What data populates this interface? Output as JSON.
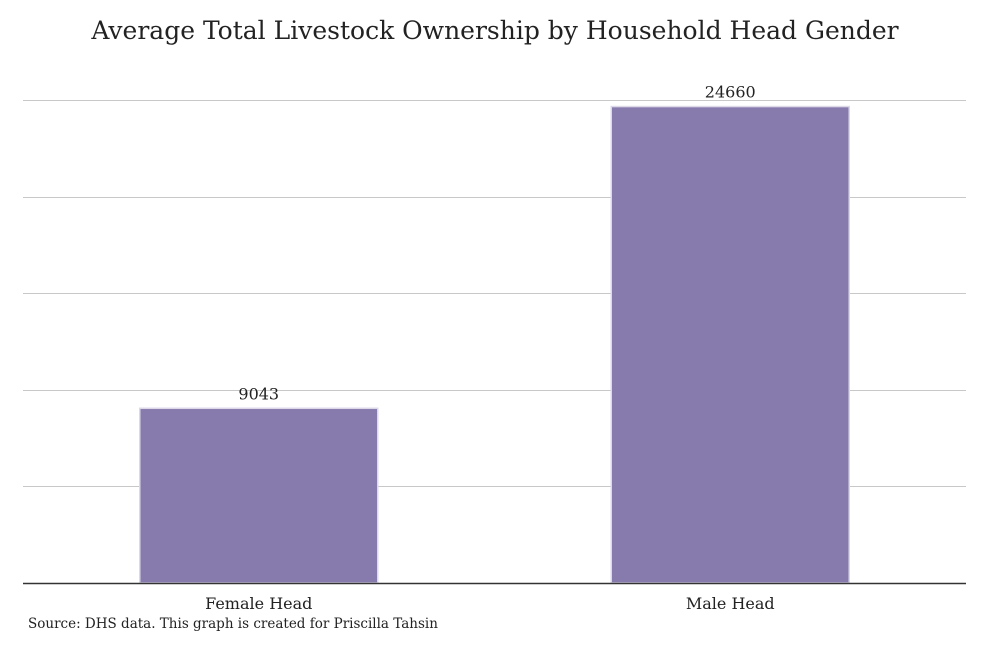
{
  "chart_data": {
    "type": "bar",
    "title": "Average Total Livestock Ownership by Household Head Gender",
    "categories": [
      "Female Head",
      "Male Head"
    ],
    "values": [
      9043,
      24660
    ],
    "data_labels": [
      "9043",
      "24660"
    ],
    "xlabel": "",
    "ylabel": "",
    "ylim": [
      0,
      25000
    ],
    "y_tick_values": [
      0,
      5000,
      10000,
      15000,
      20000,
      25000
    ],
    "y_tick_labels_visible": false,
    "grid": true,
    "legend": "none",
    "bar_color": "#877bad",
    "grid_color": "#c8c8c8",
    "axis_color": "#333333"
  },
  "source_note": "Source: DHS data. This graph is created for Priscilla Tahsin"
}
